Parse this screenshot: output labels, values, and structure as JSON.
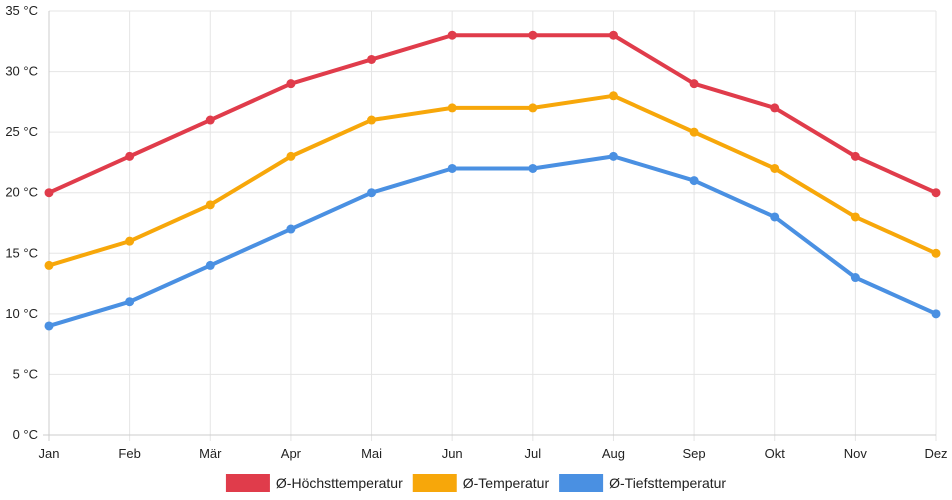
{
  "chart_data": {
    "type": "line",
    "categories": [
      "Jan",
      "Feb",
      "Mär",
      "Apr",
      "Mai",
      "Jun",
      "Jul",
      "Aug",
      "Sep",
      "Okt",
      "Nov",
      "Dez"
    ],
    "ylim": [
      0,
      35
    ],
    "yticks": [
      0,
      5,
      10,
      15,
      20,
      25,
      30,
      35
    ],
    "ytick_labels": [
      "0 °C",
      "5 °C",
      "10 °C",
      "15 °C",
      "20 °C",
      "25 °C",
      "30 °C",
      "35 °C"
    ],
    "grid": true,
    "legend_position": "bottom",
    "series": [
      {
        "name": "Ø-Höchsttemperatur",
        "color": "#e03c4b",
        "values": [
          20,
          23,
          26,
          29,
          31,
          33,
          33,
          33,
          29,
          27,
          23,
          20
        ]
      },
      {
        "name": "Ø-Temperatur",
        "color": "#f7a70a",
        "values": [
          14,
          16,
          19,
          23,
          26,
          27,
          27,
          28,
          25,
          22,
          18,
          15
        ]
      },
      {
        "name": "Ø-Tiefsttemperatur",
        "color": "#4a90e2",
        "values": [
          9,
          11,
          14,
          17,
          20,
          22,
          22,
          23,
          21,
          18,
          13,
          10
        ]
      }
    ]
  }
}
